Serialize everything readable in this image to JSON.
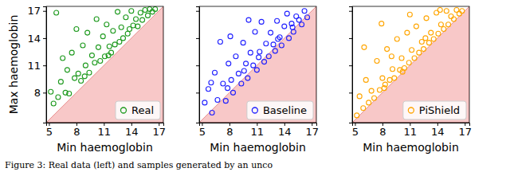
{
  "chart_data": [
    {
      "type": "scatter",
      "x_label": "Min haemoglobin",
      "y_label": "Max haemoglobin",
      "xlim": [
        4.7,
        17.5
      ],
      "ylim": [
        4.7,
        17.5
      ],
      "xticks": [
        5,
        8,
        11,
        14,
        17
      ],
      "yticks": [
        8,
        11,
        14,
        17
      ],
      "legend": "lower right",
      "series": [
        {
          "name": "Real",
          "color": "#1e9a1e",
          "marker": "circle-open",
          "x": [
            5.2,
            5.5,
            5.8,
            6.0,
            6.3,
            6.5,
            6.8,
            7.0,
            7.2,
            7.5,
            7.8,
            8.0,
            8.2,
            8.5,
            8.7,
            9.0,
            9.2,
            9.4,
            9.7,
            10.0,
            10.2,
            10.4,
            10.6,
            10.9,
            11.1,
            11.3,
            11.6,
            11.8,
            12.0,
            12.2,
            12.5,
            12.7,
            12.9,
            13.1,
            13.4,
            13.6,
            13.8,
            14.0,
            14.2,
            14.5,
            14.7,
            15.0,
            15.2,
            15.5,
            15.8,
            16.0,
            16.3,
            16.6,
            8.9,
            11.5
          ],
          "values": [
            8.1,
            6.8,
            16.8,
            7.5,
            9.2,
            11.8,
            8.0,
            10.5,
            7.9,
            12.4,
            9.6,
            15.0,
            10.1,
            9.3,
            13.2,
            11.0,
            14.6,
            10.2,
            12.1,
            11.3,
            16.1,
            13.0,
            11.5,
            14.2,
            12.0,
            15.5,
            13.1,
            12.4,
            14.8,
            13.3,
            16.9,
            13.6,
            15.2,
            14.0,
            16.3,
            14.5,
            15.0,
            17.0,
            15.4,
            16.1,
            15.3,
            16.8,
            16.0,
            17.1,
            16.5,
            17.2,
            16.9,
            17.2,
            9.8,
            12.1
          ]
        }
      ]
    },
    {
      "type": "scatter",
      "x_label": "Min haemoglobin",
      "xlim": [
        4.7,
        17.5
      ],
      "ylim": [
        4.7,
        17.5
      ],
      "xticks": [
        5,
        8,
        11,
        14,
        17
      ],
      "yticks": [
        8,
        11,
        14,
        17
      ],
      "tick_labels": "x",
      "legend": "lower right",
      "series": [
        {
          "name": "Baseline",
          "color": "#1f1fff",
          "marker": "circle-open",
          "x": [
            5.3,
            5.7,
            6.1,
            6.4,
            6.7,
            7.0,
            7.3,
            7.6,
            7.9,
            8.2,
            8.4,
            8.7,
            9.0,
            9.3,
            9.5,
            9.8,
            10.0,
            10.3,
            10.6,
            10.8,
            11.0,
            11.3,
            11.5,
            11.8,
            12.0,
            12.3,
            12.5,
            12.8,
            13.0,
            13.2,
            13.5,
            13.7,
            14.0,
            14.3,
            14.5,
            14.8,
            15.0,
            15.3,
            15.6,
            15.9,
            16.2,
            16.5,
            6.0,
            7.8,
            9.6,
            11.2,
            13.3,
            14.9,
            8.1,
            10.1
          ],
          "values": [
            6.9,
            8.4,
            5.8,
            10.2,
            7.2,
            13.6,
            9.0,
            7.1,
            11.2,
            9.4,
            8.0,
            12.0,
            10.1,
            9.0,
            13.5,
            11.2,
            9.6,
            12.4,
            11.0,
            14.7,
            10.5,
            12.5,
            15.8,
            11.4,
            13.4,
            12.0,
            14.6,
            13.3,
            12.6,
            15.9,
            14.1,
            13.2,
            15.3,
            16.7,
            14.0,
            15.6,
            14.7,
            16.4,
            16.0,
            15.5,
            17.0,
            16.3,
            9.1,
            8.5,
            10.4,
            11.9,
            13.9,
            15.2,
            14.2,
            16.0
          ]
        }
      ]
    },
    {
      "type": "scatter",
      "x_label": "Min haemoglobin",
      "xlim": [
        4.7,
        17.5
      ],
      "ylim": [
        4.7,
        17.5
      ],
      "xticks": [
        5,
        8,
        11,
        14,
        17
      ],
      "yticks": [
        8,
        11,
        14,
        17
      ],
      "tick_labels": "x",
      "legend": "lower right",
      "series": [
        {
          "name": "PiShield",
          "color": "#ffa500",
          "marker": "circle-open",
          "x": [
            5.2,
            5.5,
            5.9,
            6.2,
            6.5,
            6.8,
            7.1,
            7.4,
            7.7,
            8.0,
            8.2,
            8.5,
            8.8,
            9.1,
            9.3,
            9.6,
            9.9,
            10.1,
            10.4,
            10.7,
            10.9,
            11.2,
            11.5,
            11.7,
            12.0,
            12.3,
            12.5,
            12.8,
            13.1,
            13.3,
            13.6,
            13.9,
            14.1,
            14.4,
            14.7,
            15.0,
            15.2,
            15.5,
            15.8,
            16.1,
            16.4,
            16.7,
            6.0,
            7.9,
            9.0,
            11.0,
            12.7,
            14.3,
            10.2,
            8.3
          ],
          "values": [
            5.5,
            7.6,
            6.3,
            9.4,
            6.9,
            8.2,
            7.4,
            11.5,
            8.3,
            9.6,
            8.5,
            12.8,
            9.4,
            10.6,
            9.6,
            13.9,
            10.5,
            11.8,
            10.7,
            14.6,
            11.3,
            12.7,
            11.8,
            15.3,
            12.4,
            13.6,
            12.8,
            16.2,
            13.5,
            14.6,
            13.9,
            16.8,
            14.5,
            15.5,
            15.0,
            17.0,
            15.5,
            16.4,
            16.1,
            17.1,
            16.7,
            17.0,
            13.0,
            15.6,
            12.0,
            16.6,
            14.0,
            17.1,
            10.3,
            8.9
          ]
        }
      ]
    }
  ],
  "caption": "Figure 3: Real data (left) and samples generated by an unco"
}
